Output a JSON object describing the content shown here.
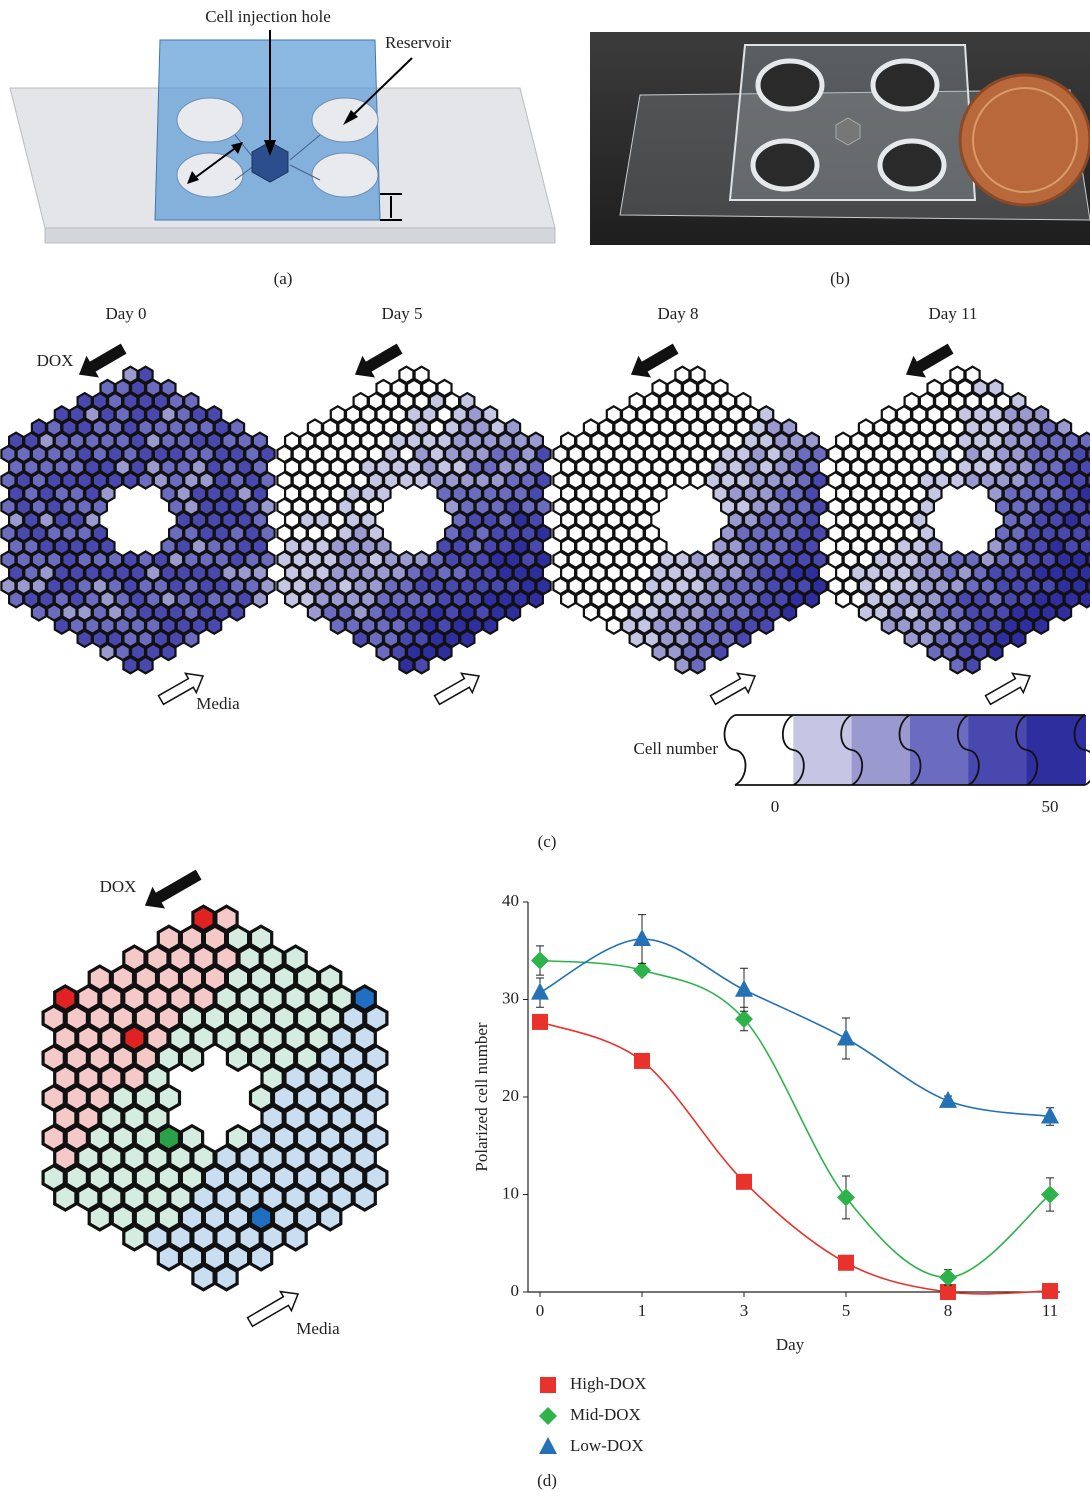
{
  "panel_a": {
    "injection_label": "Cell injection hole",
    "reservoir_label": "Reservoir",
    "caption": "(a)"
  },
  "panel_b": {
    "caption": "(b)"
  },
  "panel_c": {
    "days": [
      "Day 0",
      "Day 5",
      "Day 8",
      "Day 11"
    ],
    "dox_label": "DOX",
    "media_label": "Media",
    "colorbar_label": "Cell number",
    "colorbar_ticks": [
      0,
      50
    ],
    "caption": "(c)"
  },
  "panel_d": {
    "dox_label": "DOX",
    "media_label": "Media",
    "caption": "(d)"
  },
  "chart_data": {
    "type": "line",
    "xlabel": "Day",
    "ylabel": "Polarized cell number",
    "categories": [
      "0",
      "1",
      "3",
      "5",
      "8",
      "11"
    ],
    "ylim": [
      0,
      40
    ],
    "yticks": [
      0,
      10,
      20,
      30,
      40
    ],
    "series": [
      {
        "name": "High-DOX",
        "color": "#e8322b",
        "marker": "square",
        "values": [
          27.7,
          23.7,
          11.3,
          3,
          0,
          0.1
        ]
      },
      {
        "name": "Mid-DOX",
        "color": "#2db34a",
        "marker": "diamond",
        "values": [
          34,
          33,
          28,
          9.7,
          1.5,
          10
        ],
        "errors": [
          1.5,
          0.5,
          1.2,
          2.2,
          0.8,
          1.7
        ]
      },
      {
        "name": "Low-DOX",
        "color": "#2471b5",
        "marker": "triangle",
        "values": [
          30.7,
          36.2,
          31,
          26,
          19.6,
          18
        ],
        "errors": [
          1.5,
          2.5,
          2.2,
          2.1,
          0.5,
          0.9
        ]
      }
    ]
  }
}
